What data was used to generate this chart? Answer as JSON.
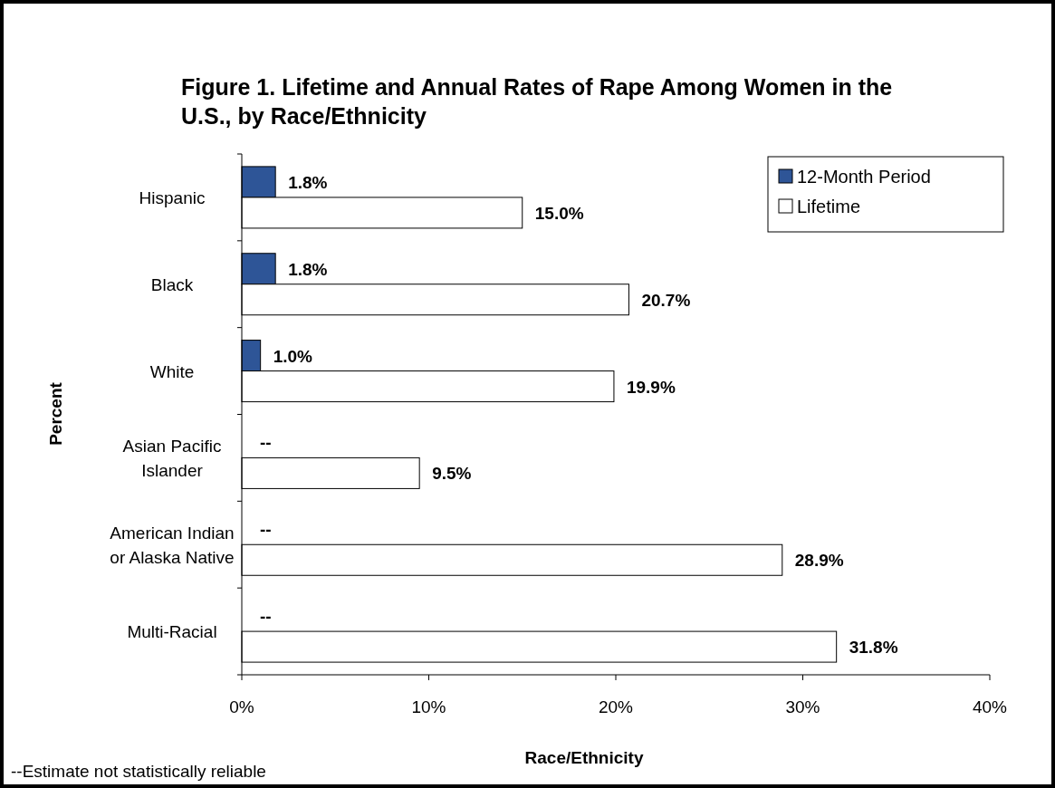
{
  "chart_data": {
    "type": "bar",
    "orientation": "horizontal",
    "title": "Figure 1. Lifetime and Annual Rates of Rape Among Women in the\nU.S., by Race/Ethnicity",
    "xlabel": "Race/Ethnicity",
    "ylabel": "Percent",
    "categories": [
      "Hispanic",
      "Black",
      "White",
      "Asian Pacific\nIslander",
      "American Indian\nor Alaska Native",
      "Multi-Racial"
    ],
    "series": [
      {
        "name": "12-Month Period",
        "color": "#2e5597",
        "values": [
          1.8,
          1.8,
          1.0,
          null,
          null,
          null
        ],
        "value_labels": [
          "1.8%",
          "1.8%",
          "1.0%",
          "--",
          "--",
          "--"
        ]
      },
      {
        "name": "Lifetime",
        "color": "#ffffff",
        "values": [
          15.0,
          20.7,
          19.9,
          9.5,
          28.9,
          31.8
        ],
        "value_labels": [
          "15.0%",
          "20.7%",
          "19.9%",
          "9.5%",
          "28.9%",
          "31.8%"
        ]
      }
    ],
    "xlim": [
      0,
      40
    ],
    "xticks": [
      {
        "value": 0,
        "label": "0%"
      },
      {
        "value": 10,
        "label": "10%"
      },
      {
        "value": 20,
        "label": "20%"
      },
      {
        "value": 30,
        "label": "30%"
      },
      {
        "value": 40,
        "label": "40%"
      }
    ],
    "grid": false,
    "legend": "top right",
    "annotations": [
      "--Estimate not statistically reliable"
    ]
  }
}
